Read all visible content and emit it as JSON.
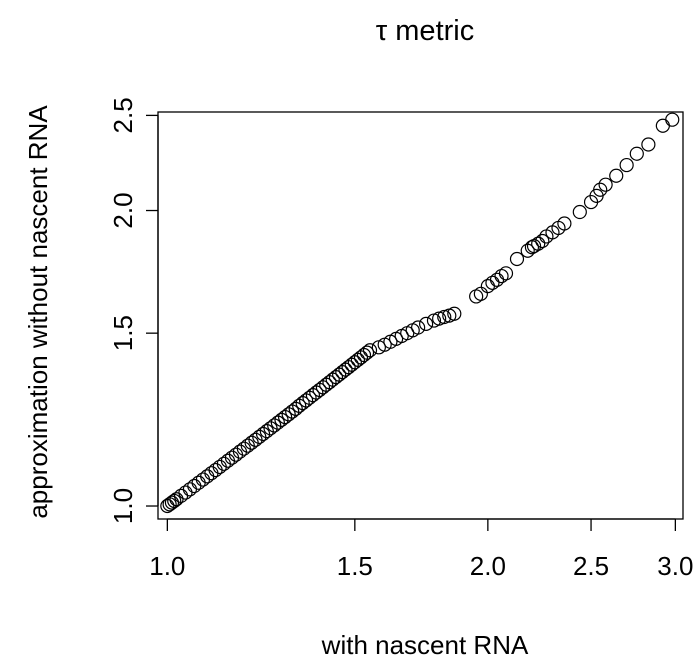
{
  "chart_data": {
    "type": "scatter",
    "title": "τ metric",
    "xlabel": "with nascent RNA",
    "ylabel": "approximation without nascent RNA",
    "x_scale": "log",
    "y_scale": "log",
    "xlim": [
      0.98,
      3.05
    ],
    "ylim": [
      0.97,
      2.52
    ],
    "x_ticks": [
      1.0,
      1.5,
      2.0,
      2.5,
      3.0
    ],
    "x_tick_labels": [
      "1.0",
      "1.5",
      "2.0",
      "2.5",
      "3.0"
    ],
    "y_ticks": [
      1.0,
      1.5,
      2.0,
      2.5
    ],
    "y_tick_labels": [
      "1.0",
      "1.5",
      "2.0",
      "2.5"
    ],
    "grid": false,
    "marker": "open-circle",
    "points": [
      [
        1.0,
        1.0
      ],
      [
        1.005,
        1.004
      ],
      [
        1.01,
        1.008
      ],
      [
        1.015,
        1.012
      ],
      [
        1.02,
        1.016
      ],
      [
        1.03,
        1.024
      ],
      [
        1.04,
        1.032
      ],
      [
        1.05,
        1.04
      ],
      [
        1.06,
        1.048
      ],
      [
        1.07,
        1.056
      ],
      [
        1.08,
        1.064
      ],
      [
        1.09,
        1.072
      ],
      [
        1.1,
        1.08
      ],
      [
        1.11,
        1.088
      ],
      [
        1.12,
        1.096
      ],
      [
        1.13,
        1.104
      ],
      [
        1.14,
        1.112
      ],
      [
        1.15,
        1.12
      ],
      [
        1.16,
        1.128
      ],
      [
        1.17,
        1.136
      ],
      [
        1.18,
        1.144
      ],
      [
        1.19,
        1.152
      ],
      [
        1.2,
        1.16
      ],
      [
        1.21,
        1.168
      ],
      [
        1.22,
        1.176
      ],
      [
        1.23,
        1.184
      ],
      [
        1.24,
        1.192
      ],
      [
        1.25,
        1.2
      ],
      [
        1.26,
        1.208
      ],
      [
        1.27,
        1.216
      ],
      [
        1.28,
        1.224
      ],
      [
        1.29,
        1.232
      ],
      [
        1.3,
        1.24
      ],
      [
        1.31,
        1.248
      ],
      [
        1.32,
        1.256
      ],
      [
        1.33,
        1.265
      ],
      [
        1.34,
        1.273
      ],
      [
        1.35,
        1.281
      ],
      [
        1.36,
        1.289
      ],
      [
        1.37,
        1.297
      ],
      [
        1.38,
        1.305
      ],
      [
        1.39,
        1.313
      ],
      [
        1.4,
        1.321
      ],
      [
        1.41,
        1.329
      ],
      [
        1.42,
        1.337
      ],
      [
        1.43,
        1.345
      ],
      [
        1.44,
        1.353
      ],
      [
        1.45,
        1.361
      ],
      [
        1.46,
        1.369
      ],
      [
        1.47,
        1.377
      ],
      [
        1.48,
        1.385
      ],
      [
        1.49,
        1.393
      ],
      [
        1.5,
        1.401
      ],
      [
        1.51,
        1.409
      ],
      [
        1.52,
        1.417
      ],
      [
        1.53,
        1.425
      ],
      [
        1.54,
        1.433
      ],
      [
        1.55,
        1.441
      ],
      [
        1.58,
        1.451
      ],
      [
        1.6,
        1.46
      ],
      [
        1.62,
        1.47
      ],
      [
        1.64,
        1.48
      ],
      [
        1.66,
        1.49
      ],
      [
        1.68,
        1.5
      ],
      [
        1.7,
        1.51
      ],
      [
        1.72,
        1.52
      ],
      [
        1.75,
        1.533
      ],
      [
        1.78,
        1.545
      ],
      [
        1.8,
        1.552
      ],
      [
        1.82,
        1.558
      ],
      [
        1.84,
        1.563
      ],
      [
        1.86,
        1.57
      ],
      [
        1.95,
        1.635
      ],
      [
        1.97,
        1.645
      ],
      [
        2.0,
        1.675
      ],
      [
        2.02,
        1.688
      ],
      [
        2.04,
        1.7
      ],
      [
        2.06,
        1.715
      ],
      [
        2.08,
        1.726
      ],
      [
        2.13,
        1.785
      ],
      [
        2.18,
        1.82
      ],
      [
        2.2,
        1.835
      ],
      [
        2.21,
        1.84
      ],
      [
        2.23,
        1.85
      ],
      [
        2.25,
        1.862
      ],
      [
        2.27,
        1.882
      ],
      [
        2.3,
        1.9
      ],
      [
        2.33,
        1.92
      ],
      [
        2.36,
        1.94
      ],
      [
        2.44,
        1.993
      ],
      [
        2.5,
        2.04
      ],
      [
        2.53,
        2.07
      ],
      [
        2.55,
        2.1
      ],
      [
        2.58,
        2.125
      ],
      [
        2.64,
        2.17
      ],
      [
        2.7,
        2.225
      ],
      [
        2.76,
        2.285
      ],
      [
        2.83,
        2.335
      ],
      [
        2.92,
        2.44
      ],
      [
        2.98,
        2.475
      ]
    ]
  }
}
